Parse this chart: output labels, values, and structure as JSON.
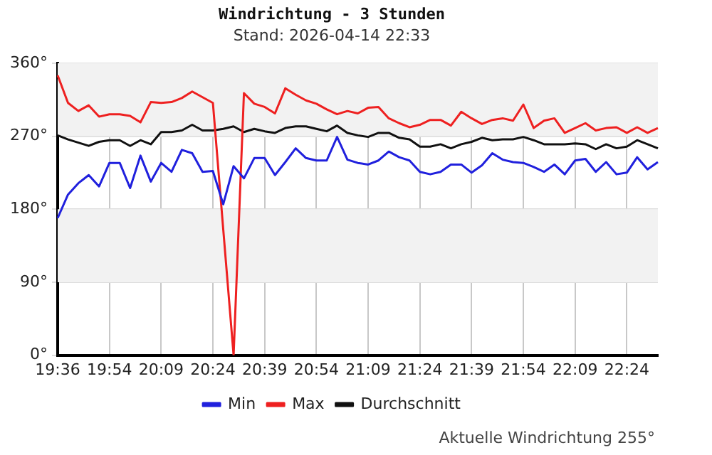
{
  "chart_data": {
    "type": "line",
    "title": "Windrichtung - 3 Stunden",
    "subtitle": "Stand: 2026-04-14 22:33",
    "categories": [
      "19:36",
      null,
      null,
      null,
      null,
      "19:54",
      null,
      null,
      null,
      null,
      "20:09",
      null,
      null,
      null,
      null,
      "20:24",
      null,
      null,
      null,
      null,
      "20:39",
      null,
      null,
      null,
      null,
      "20:54",
      null,
      null,
      null,
      null,
      "21:09",
      null,
      null,
      null,
      null,
      "21:24",
      null,
      null,
      null,
      null,
      "21:39",
      null,
      null,
      null,
      null,
      "21:54",
      null,
      null,
      null,
      null,
      "22:09",
      null,
      null,
      null,
      null,
      "22:24",
      null,
      null,
      null
    ],
    "series": [
      {
        "name": "Min",
        "color": "#2020dd",
        "values": [
          169,
          198,
          212,
          222,
          208,
          237,
          237,
          206,
          246,
          214,
          237,
          226,
          253,
          249,
          226,
          227,
          186,
          233,
          218,
          243,
          243,
          222,
          238,
          255,
          243,
          240,
          240,
          269,
          241,
          237,
          235,
          240,
          251,
          244,
          240,
          226,
          223,
          226,
          235,
          235,
          225,
          234,
          249,
          241,
          238,
          237,
          232,
          226,
          235,
          223,
          240,
          242,
          226,
          238,
          223,
          225,
          244,
          229,
          238
        ]
      },
      {
        "name": "Max",
        "color": "#ee2020",
        "values": [
          345,
          311,
          301,
          308,
          294,
          297,
          297,
          295,
          287,
          312,
          311,
          312,
          317,
          325,
          318,
          311,
          155,
          0,
          323,
          310,
          306,
          298,
          329,
          321,
          314,
          310,
          303,
          297,
          301,
          298,
          305,
          306,
          292,
          286,
          281,
          284,
          290,
          290,
          283,
          300,
          292,
          285,
          290,
          292,
          289,
          309,
          280,
          289,
          292,
          274,
          280,
          286,
          277,
          280,
          281,
          274,
          281,
          274,
          280
        ]
      },
      {
        "name": "Durchschnitt",
        "color": "#111111",
        "values": [
          271,
          266,
          262,
          258,
          263,
          265,
          265,
          258,
          265,
          260,
          275,
          275,
          277,
          284,
          277,
          277,
          279,
          282,
          275,
          279,
          276,
          274,
          280,
          282,
          282,
          279,
          276,
          283,
          274,
          271,
          269,
          274,
          274,
          268,
          266,
          257,
          257,
          260,
          255,
          260,
          263,
          268,
          265,
          266,
          266,
          269,
          265,
          260,
          260,
          260,
          261,
          260,
          254,
          260,
          255,
          257,
          265,
          260,
          255
        ]
      }
    ],
    "ylim": [
      0,
      360
    ],
    "yticks": [
      {
        "value": 0,
        "label": "0°"
      },
      {
        "value": 90,
        "label": "90°"
      },
      {
        "value": 180,
        "label": "180°"
      },
      {
        "value": 270,
        "label": "270°"
      },
      {
        "value": 360,
        "label": "360°"
      }
    ],
    "bands": [
      {
        "axis": "y",
        "from": 90,
        "to": 180,
        "color": "#f2f2f2"
      },
      {
        "axis": "y",
        "from": 270,
        "to": 360,
        "color": "#f2f2f2"
      }
    ],
    "grid": true,
    "legend": "bottom",
    "marker": "none",
    "line_style": "solid",
    "annotations": [
      "Aktuelle Windrichtung 255°"
    ]
  }
}
